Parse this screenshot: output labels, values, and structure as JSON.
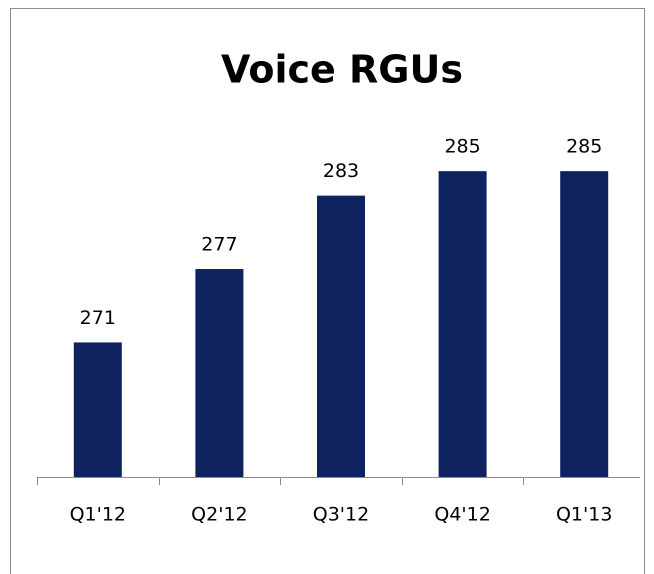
{
  "chart_data": {
    "type": "bar",
    "title": "Voice RGUs",
    "categories": [
      "Q1'12",
      "Q2'12",
      "Q3'12",
      "Q4'12",
      "Q1'13"
    ],
    "values": [
      271,
      277,
      283,
      285,
      285
    ],
    "color": "#0f2260",
    "ylim": [
      260,
      290
    ]
  }
}
